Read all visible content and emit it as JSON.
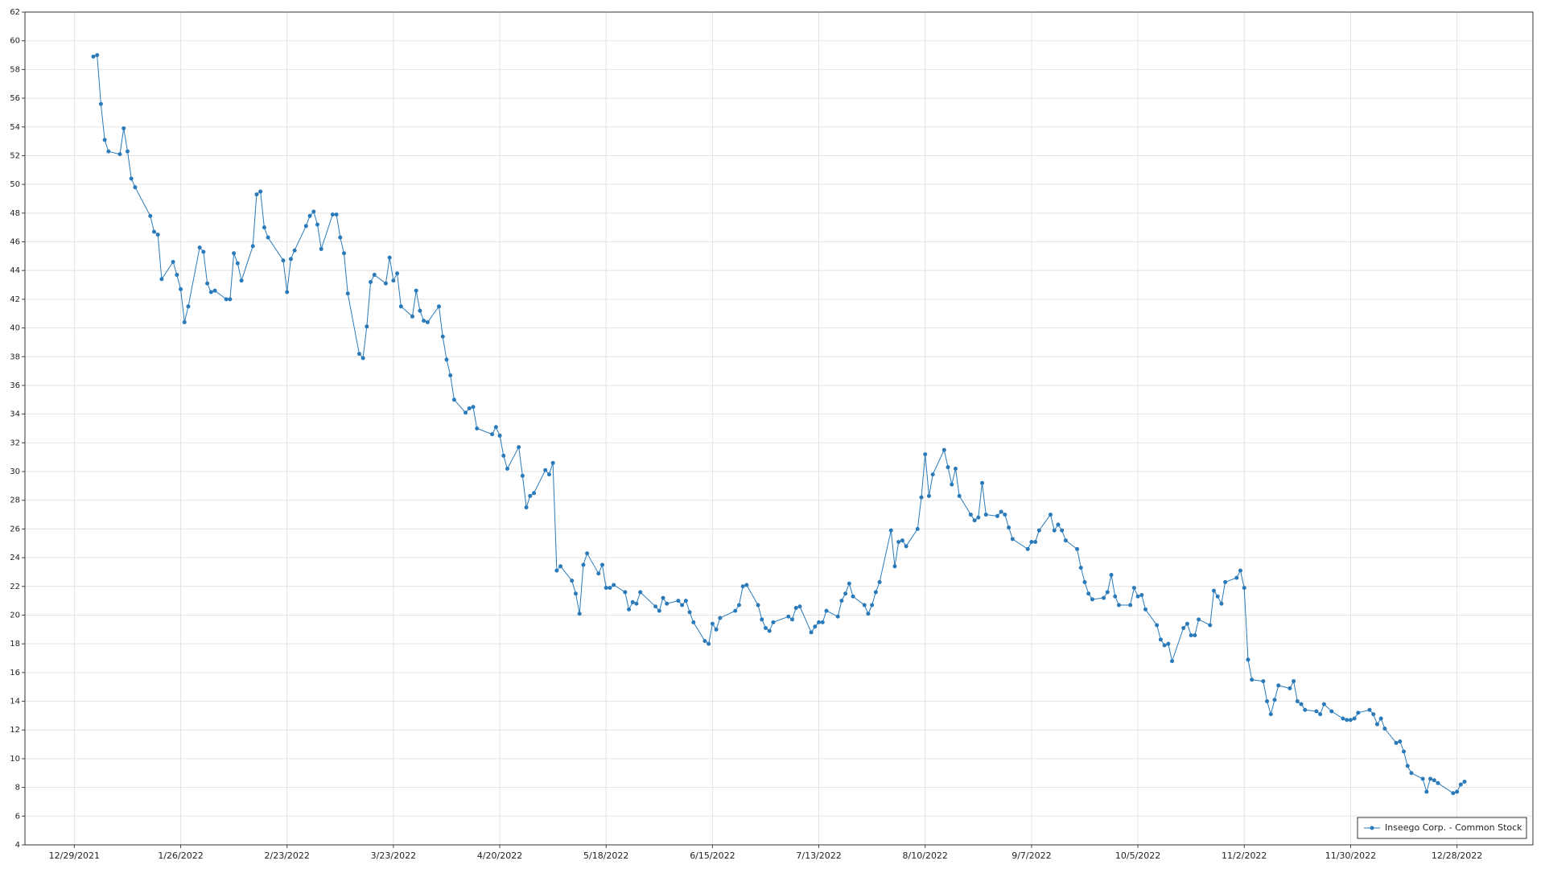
{
  "chart_data": {
    "type": "line",
    "x": [
      "1/3/2022",
      "1/4/2022",
      "1/5/2022",
      "1/6/2022",
      "1/7/2022",
      "1/10/2022",
      "1/11/2022",
      "1/12/2022",
      "1/13/2022",
      "1/14/2022",
      "1/18/2022",
      "1/19/2022",
      "1/20/2022",
      "1/21/2022",
      "1/24/2022",
      "1/25/2022",
      "1/26/2022",
      "1/27/2022",
      "1/28/2022",
      "1/31/2022",
      "2/1/2022",
      "2/2/2022",
      "2/3/2022",
      "2/4/2022",
      "2/7/2022",
      "2/8/2022",
      "2/9/2022",
      "2/10/2022",
      "2/11/2022",
      "2/14/2022",
      "2/15/2022",
      "2/16/2022",
      "2/17/2022",
      "2/18/2022",
      "2/22/2022",
      "2/23/2022",
      "2/24/2022",
      "2/25/2022",
      "2/28/2022",
      "3/1/2022",
      "3/2/2022",
      "3/3/2022",
      "3/4/2022",
      "3/7/2022",
      "3/8/2022",
      "3/9/2022",
      "3/10/2022",
      "3/11/2022",
      "3/14/2022",
      "3/15/2022",
      "3/16/2022",
      "3/17/2022",
      "3/18/2022",
      "3/21/2022",
      "3/22/2022",
      "3/23/2022",
      "3/24/2022",
      "3/25/2022",
      "3/28/2022",
      "3/29/2022",
      "3/30/2022",
      "3/31/2022",
      "4/1/2022",
      "4/4/2022",
      "4/5/2022",
      "4/6/2022",
      "4/7/2022",
      "4/8/2022",
      "4/11/2022",
      "4/12/2022",
      "4/13/2022",
      "4/14/2022",
      "4/18/2022",
      "4/19/2022",
      "4/20/2022",
      "4/21/2022",
      "4/22/2022",
      "4/25/2022",
      "4/26/2022",
      "4/27/2022",
      "4/28/2022",
      "4/29/2022",
      "5/2/2022",
      "5/3/2022",
      "5/4/2022",
      "5/5/2022",
      "5/6/2022",
      "5/9/2022",
      "5/10/2022",
      "5/11/2022",
      "5/12/2022",
      "5/13/2022",
      "5/16/2022",
      "5/17/2022",
      "5/18/2022",
      "5/19/2022",
      "5/20/2022",
      "5/23/2022",
      "5/24/2022",
      "5/25/2022",
      "5/26/2022",
      "5/27/2022",
      "5/31/2022",
      "6/1/2022",
      "6/2/2022",
      "6/3/2022",
      "6/6/2022",
      "6/7/2022",
      "6/8/2022",
      "6/9/2022",
      "6/10/2022",
      "6/13/2022",
      "6/14/2022",
      "6/15/2022",
      "6/16/2022",
      "6/17/2022",
      "6/21/2022",
      "6/22/2022",
      "6/23/2022",
      "6/24/2022",
      "6/27/2022",
      "6/28/2022",
      "6/29/2022",
      "6/30/2022",
      "7/1/2022",
      "7/5/2022",
      "7/6/2022",
      "7/7/2022",
      "7/8/2022",
      "7/11/2022",
      "7/12/2022",
      "7/13/2022",
      "7/14/2022",
      "7/15/2022",
      "7/18/2022",
      "7/19/2022",
      "7/20/2022",
      "7/21/2022",
      "7/22/2022",
      "7/25/2022",
      "7/26/2022",
      "7/27/2022",
      "7/28/2022",
      "7/29/2022",
      "8/1/2022",
      "8/2/2022",
      "8/3/2022",
      "8/4/2022",
      "8/5/2022",
      "8/8/2022",
      "8/9/2022",
      "8/10/2022",
      "8/11/2022",
      "8/12/2022",
      "8/15/2022",
      "8/16/2022",
      "8/17/2022",
      "8/18/2022",
      "8/19/2022",
      "8/22/2022",
      "8/23/2022",
      "8/24/2022",
      "8/25/2022",
      "8/26/2022",
      "8/29/2022",
      "8/30/2022",
      "8/31/2022",
      "9/1/2022",
      "9/2/2022",
      "9/6/2022",
      "9/7/2022",
      "9/8/2022",
      "9/9/2022",
      "9/12/2022",
      "9/13/2022",
      "9/14/2022",
      "9/15/2022",
      "9/16/2022",
      "9/19/2022",
      "9/20/2022",
      "9/21/2022",
      "9/22/2022",
      "9/23/2022",
      "9/26/2022",
      "9/27/2022",
      "9/28/2022",
      "9/29/2022",
      "9/30/2022",
      "10/3/2022",
      "10/4/2022",
      "10/5/2022",
      "10/6/2022",
      "10/7/2022",
      "10/10/2022",
      "10/11/2022",
      "10/12/2022",
      "10/13/2022",
      "10/14/2022",
      "10/17/2022",
      "10/18/2022",
      "10/19/2022",
      "10/20/2022",
      "10/21/2022",
      "10/24/2022",
      "10/25/2022",
      "10/26/2022",
      "10/27/2022",
      "10/28/2022",
      "10/31/2022",
      "11/1/2022",
      "11/2/2022",
      "11/3/2022",
      "11/4/2022",
      "11/7/2022",
      "11/8/2022",
      "11/9/2022",
      "11/10/2022",
      "11/11/2022",
      "11/14/2022",
      "11/15/2022",
      "11/16/2022",
      "11/17/2022",
      "11/18/2022",
      "11/21/2022",
      "11/22/2022",
      "11/23/2022",
      "11/25/2022",
      "11/28/2022",
      "11/29/2022",
      "11/30/2022",
      "12/1/2022",
      "12/2/2022",
      "12/5/2022",
      "12/6/2022",
      "12/7/2022",
      "12/8/2022",
      "12/9/2022",
      "12/12/2022",
      "12/13/2022",
      "12/14/2022",
      "12/15/2022",
      "12/16/2022",
      "12/19/2022",
      "12/20/2022",
      "12/21/2022",
      "12/22/2022",
      "12/23/2022",
      "12/27/2022",
      "12/28/2022",
      "12/29/2022",
      "12/30/2022"
    ],
    "series": [
      {
        "name": "Inseego Corp. - Common Stock",
        "color": "#2a7ab9",
        "values": [
          58.9,
          59.0,
          55.6,
          53.1,
          52.3,
          52.1,
          53.9,
          52.3,
          50.4,
          49.8,
          47.8,
          46.7,
          46.5,
          43.4,
          44.6,
          43.7,
          42.7,
          40.4,
          41.5,
          45.6,
          45.3,
          43.1,
          42.5,
          42.6,
          42.0,
          42.0,
          45.2,
          44.5,
          43.3,
          45.7,
          49.3,
          49.5,
          47.0,
          46.3,
          44.7,
          42.5,
          44.8,
          45.4,
          47.1,
          47.8,
          48.1,
          47.2,
          45.5,
          47.9,
          47.9,
          46.3,
          45.2,
          42.4,
          38.2,
          37.9,
          40.1,
          43.2,
          43.7,
          43.1,
          44.9,
          43.3,
          43.8,
          41.5,
          40.8,
          42.6,
          41.2,
          40.5,
          40.4,
          41.5,
          39.4,
          37.8,
          36.7,
          35.0,
          34.1,
          34.4,
          34.5,
          33.0,
          32.6,
          33.1,
          32.5,
          31.1,
          30.2,
          31.7,
          29.7,
          27.5,
          28.3,
          28.5,
          30.1,
          29.8,
          30.6,
          23.1,
          23.4,
          22.4,
          21.5,
          20.1,
          23.5,
          24.3,
          22.9,
          23.5,
          21.9,
          21.9,
          22.1,
          21.6,
          20.4,
          20.9,
          20.8,
          21.6,
          20.6,
          20.3,
          21.2,
          20.8,
          21.0,
          20.7,
          21.0,
          20.2,
          19.5,
          18.2,
          18.0,
          19.4,
          19.0,
          19.8,
          20.3,
          20.7,
          22.0,
          22.1,
          20.7,
          19.7,
          19.1,
          18.9,
          19.5,
          19.9,
          19.7,
          20.5,
          20.6,
          18.8,
          19.2,
          19.5,
          19.5,
          20.3,
          19.9,
          21.0,
          21.5,
          22.2,
          21.3,
          20.7,
          20.1,
          20.7,
          21.6,
          22.3,
          25.9,
          23.4,
          25.1,
          25.2,
          24.8,
          26.0,
          28.2,
          31.2,
          28.3,
          29.8,
          31.5,
          30.3,
          29.1,
          30.2,
          28.3,
          27.0,
          26.6,
          26.8,
          29.2,
          27.0,
          26.9,
          27.2,
          27.0,
          26.1,
          25.3,
          24.6,
          25.1,
          25.1,
          25.9,
          27.0,
          25.9,
          26.3,
          25.9,
          25.2,
          24.6,
          23.3,
          22.3,
          21.5,
          21.1,
          21.2,
          21.6,
          22.8,
          21.3,
          20.7,
          20.7,
          21.9,
          21.3,
          21.4,
          20.4,
          19.3,
          18.3,
          17.9,
          18.0,
          16.8,
          19.1,
          19.4,
          18.6,
          18.6,
          19.7,
          19.3,
          21.7,
          21.3,
          20.8,
          22.3,
          22.6,
          23.1,
          21.9,
          16.9,
          15.5,
          15.4,
          14.0,
          13.1,
          14.1,
          15.1,
          14.9,
          15.4,
          14.0,
          13.8,
          13.4,
          13.3,
          13.1,
          13.8,
          13.3,
          12.8,
          12.7,
          12.7,
          12.8,
          13.2,
          13.4,
          13.1,
          12.4,
          12.8,
          12.1,
          11.1,
          11.2,
          10.5,
          9.5,
          9.0,
          8.6,
          7.7,
          8.6,
          8.5,
          8.3,
          7.6,
          7.7,
          8.2,
          8.4
        ]
      }
    ],
    "xlim": [
      "12/16/2021",
      "1/17/2023"
    ],
    "xticks": [
      "12/29/2021",
      "1/26/2022",
      "2/23/2022",
      "3/23/2022",
      "4/20/2022",
      "5/18/2022",
      "6/15/2022",
      "7/13/2022",
      "8/10/2022",
      "9/7/2022",
      "10/5/2022",
      "11/2/2022",
      "11/30/2022",
      "12/28/2022"
    ],
    "ylim": [
      4,
      62
    ],
    "yticks": [
      4,
      6,
      8,
      10,
      12,
      14,
      16,
      18,
      20,
      22,
      24,
      26,
      28,
      30,
      32,
      34,
      36,
      38,
      40,
      42,
      44,
      46,
      48,
      50,
      52,
      54,
      56,
      58,
      60,
      62
    ],
    "grid": true,
    "legend": "lower right"
  }
}
